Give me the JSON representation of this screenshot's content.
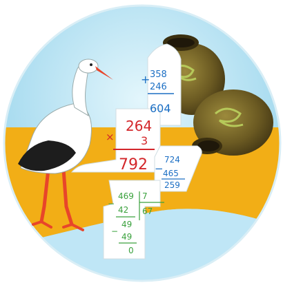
{
  "colors": {
    "sky": "#9fd6ee",
    "sky_light": "#cdeefa",
    "sand": "#f2ae16",
    "paper": "#ffffff",
    "pot": "#6e5d22",
    "pot_dark": "#3a2f10",
    "blue_ink": "#1c6fc4",
    "red_ink": "#d3262a",
    "green_ink": "#3aa13d",
    "stork_beak": "#e8452a"
  },
  "addition": {
    "sign": "+",
    "top": "358",
    "bottom": "246",
    "result": "604"
  },
  "multiplication": {
    "sign": "×",
    "top": "264",
    "bottom": "3",
    "result": "792"
  },
  "subtraction": {
    "sign": "−",
    "top": "724",
    "bottom": "465",
    "result": "259"
  },
  "division": {
    "dividend": "469",
    "divisor": "7",
    "quotient": "67",
    "step1_sub": "42",
    "step1_rem": "49",
    "step2_sub": "49",
    "remainder": "0",
    "minus": "−"
  }
}
